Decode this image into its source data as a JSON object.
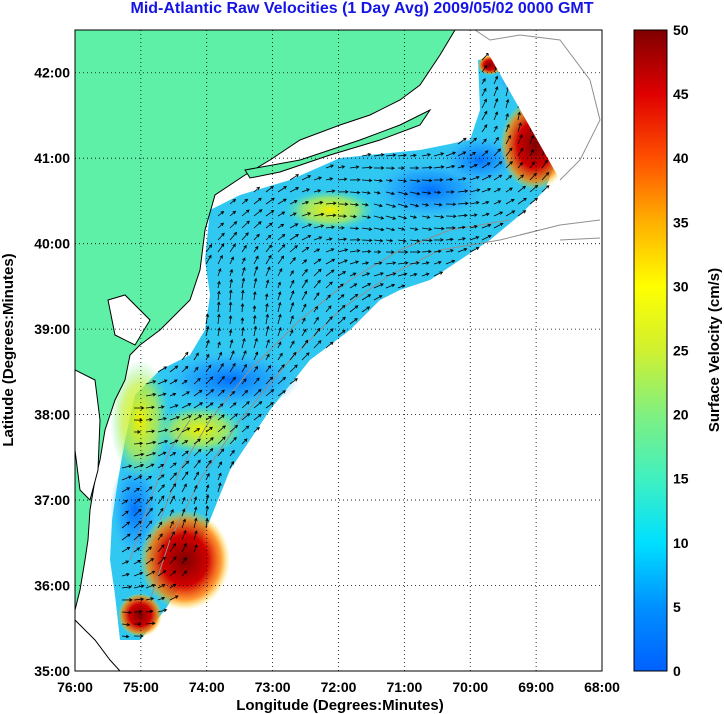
{
  "title": "Mid-Atlantic Raw Velocities (1 Day Avg) 2009/05/02 0000 GMT",
  "xlabel": "Longitude (Degrees:Minutes)",
  "ylabel": "Latitude (Degrees:Minutes)",
  "x_ticks": [
    "76:00",
    "75:00",
    "74:00",
    "73:00",
    "72:00",
    "71:00",
    "70:00",
    "69:00",
    "68:00"
  ],
  "y_ticks": [
    "42:00",
    "41:00",
    "40:00",
    "39:00",
    "38:00",
    "37:00",
    "36:00",
    "35:00"
  ],
  "colorbar": {
    "label": "Surface Velocity (cm/s)",
    "ticks": [
      "50",
      "45",
      "40",
      "35",
      "30",
      "25",
      "20",
      "15",
      "10",
      "5",
      "0"
    ],
    "range": [
      0,
      50
    ],
    "colors": [
      "#0060ff",
      "#00b0ff",
      "#00e0ff",
      "#40f0c0",
      "#80f080",
      "#c0f040",
      "#ffff00",
      "#ffc000",
      "#ff8000",
      "#ff2000",
      "#c00000",
      "#800000"
    ]
  },
  "colors": {
    "land": "#5ff0a8",
    "title": "#1414e6",
    "coast": "#000000",
    "bathymetry": "#909090"
  },
  "chart_data": {
    "type": "map",
    "xlim": [
      -76,
      -68
    ],
    "ylim": [
      35,
      42.5
    ],
    "grid": true,
    "field_regions": [
      {
        "lon": -74.3,
        "lat": 36.3,
        "speed": 45
      },
      {
        "lon": -69.0,
        "lat": 41.0,
        "speed": 45
      },
      {
        "lon": -74.7,
        "lat": 38.2,
        "speed": 25
      },
      {
        "lon": -72.5,
        "lat": 40.4,
        "speed": 22
      },
      {
        "lon": -71.0,
        "lat": 40.6,
        "speed": 5
      },
      {
        "lon": -73.5,
        "lat": 38.3,
        "speed": 8
      }
    ]
  }
}
